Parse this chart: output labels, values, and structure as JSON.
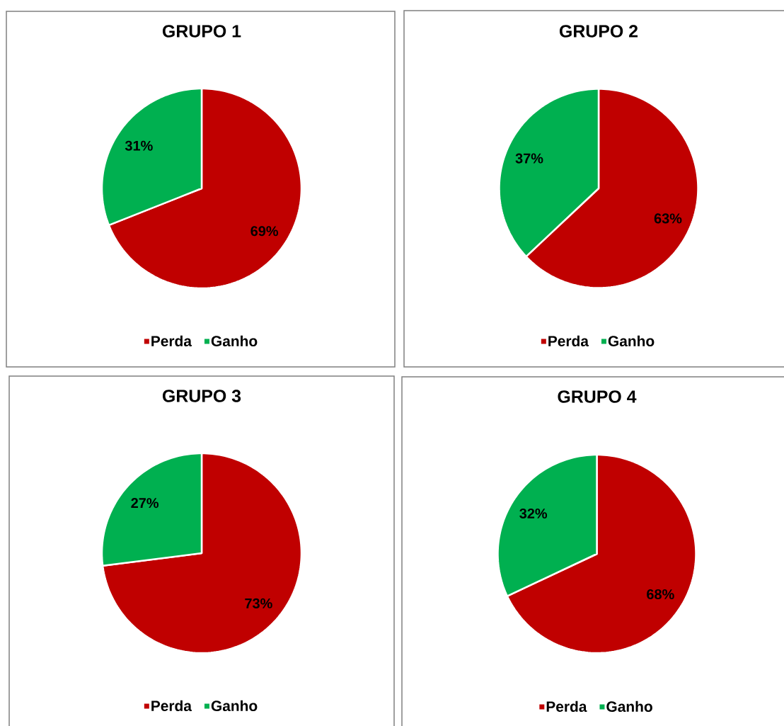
{
  "chart_data": [
    {
      "type": "pie",
      "title": "GRUPO 1",
      "categories": [
        "Perda",
        "Ganho"
      ],
      "values": [
        69,
        31
      ],
      "colors": [
        "#c00000",
        "#00b050"
      ],
      "value_labels": [
        "69%",
        "31%"
      ],
      "legend": "bottom"
    },
    {
      "type": "pie",
      "title": "GRUPO 2",
      "categories": [
        "Perda",
        "Ganho"
      ],
      "values": [
        63,
        37
      ],
      "colors": [
        "#c00000",
        "#00b050"
      ],
      "value_labels": [
        "63%",
        "37%"
      ],
      "legend": "bottom"
    },
    {
      "type": "pie",
      "title": "GRUPO 3",
      "categories": [
        "Perda",
        "Ganho"
      ],
      "values": [
        73,
        27
      ],
      "colors": [
        "#c00000",
        "#00b050"
      ],
      "value_labels": [
        "73%",
        "27%"
      ],
      "legend": "bottom"
    },
    {
      "type": "pie",
      "title": "GRUPO 4",
      "categories": [
        "Perda",
        "Ganho"
      ],
      "values": [
        68,
        32
      ],
      "colors": [
        "#c00000",
        "#00b050"
      ],
      "value_labels": [
        "68%",
        "32%"
      ],
      "legend": "bottom"
    }
  ]
}
